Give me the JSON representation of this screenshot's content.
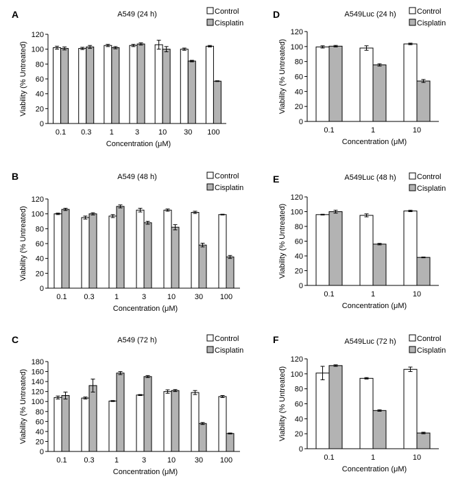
{
  "figure": {
    "legend_labels": {
      "control": "Control",
      "cisplatin": "Cisplatin"
    },
    "colors": {
      "control": "#ffffff",
      "cisplatin": "#b3b3b3",
      "stroke": "#000000"
    }
  },
  "chart_data": [
    {
      "panel": "A",
      "type": "bar",
      "title": "A549 (24 h)",
      "xlabel_prefix": "Concentration (",
      "xlabel_unit": "μM",
      "xlabel_suffix": ")",
      "ylabel": "Viability (% Untreated)",
      "categories": [
        "0.1",
        "0.3",
        "1",
        "3",
        "10",
        "30",
        "100"
      ],
      "ylim": [
        0,
        120
      ],
      "yticks": [
        0,
        20,
        40,
        60,
        80,
        100,
        120
      ],
      "legend": "top-right",
      "series": [
        {
          "name": "Control",
          "values": [
            102,
            101,
            105,
            105,
            106,
            100,
            104
          ],
          "errors": [
            2,
            1.5,
            1.5,
            1.5,
            6,
            1.5,
            1
          ]
        },
        {
          "name": "Cisplatin",
          "values": [
            101,
            103,
            102,
            107,
            100,
            84,
            57
          ],
          "errors": [
            2,
            2,
            1.5,
            1.5,
            3.5,
            1,
            0.5
          ]
        }
      ]
    },
    {
      "panel": "B",
      "type": "bar",
      "title": "A549 (48 h)",
      "xlabel_prefix": "Concentration (",
      "xlabel_unit": "μM",
      "xlabel_suffix": ")",
      "ylabel": "Viability (% Untreated)",
      "categories": [
        "0.1",
        "0.3",
        "1",
        "3",
        "10",
        "30",
        "100"
      ],
      "ylim": [
        0,
        120
      ],
      "yticks": [
        0,
        20,
        40,
        60,
        80,
        100,
        120
      ],
      "legend": "top-right",
      "series": [
        {
          "name": "Control",
          "values": [
            100,
            95,
            97,
            105,
            105,
            102,
            99
          ],
          "errors": [
            1,
            2,
            2,
            2.5,
            1.5,
            1.5,
            0.5
          ]
        },
        {
          "name": "Cisplatin",
          "values": [
            106,
            100,
            110,
            88,
            82,
            58,
            42
          ],
          "errors": [
            1.5,
            1.5,
            2,
            2,
            3.5,
            2.5,
            2
          ]
        }
      ]
    },
    {
      "panel": "C",
      "type": "bar",
      "title": "A549 (72 h)",
      "xlabel_prefix": "Concentration (",
      "xlabel_unit": "μM",
      "xlabel_suffix": ")",
      "ylabel": "Viability (% Untreated)",
      "categories": [
        "0.1",
        "0.3",
        "1",
        "3",
        "10",
        "30",
        "100"
      ],
      "ylim": [
        0,
        180
      ],
      "yticks": [
        0,
        20,
        40,
        60,
        80,
        100,
        120,
        140,
        160,
        180
      ],
      "legend": "top-right",
      "series": [
        {
          "name": "Control",
          "values": [
            108,
            107,
            101,
            113,
            120,
            118,
            110
          ],
          "errors": [
            3,
            2,
            1,
            1,
            3.5,
            4,
            2
          ]
        },
        {
          "name": "Cisplatin",
          "values": [
            112,
            132,
            157,
            150,
            122,
            56,
            36
          ],
          "errors": [
            7,
            13,
            3,
            2,
            2,
            2,
            1
          ]
        }
      ]
    },
    {
      "panel": "D",
      "type": "bar",
      "title": "A549Luc (24 h)",
      "xlabel_prefix": "Concentration (",
      "xlabel_unit": "μM",
      "xlabel_suffix": ")",
      "ylabel": "Viability (% Untreated)",
      "categories": [
        "0.1",
        "1",
        "10"
      ],
      "ylim": [
        0,
        120
      ],
      "yticks": [
        0,
        20,
        40,
        60,
        80,
        100,
        120
      ],
      "legend": "top-right",
      "series": [
        {
          "name": "Control",
          "values": [
            99.5,
            98,
            103.5
          ],
          "errors": [
            1.5,
            3,
            1
          ]
        },
        {
          "name": "Cisplatin",
          "values": [
            100.5,
            75.5,
            54
          ],
          "errors": [
            1,
            1.5,
            2
          ]
        }
      ]
    },
    {
      "panel": "E",
      "type": "bar",
      "title": "A549Luc (48 h)",
      "xlabel_prefix": "Concentration (",
      "xlabel_unit": "μM",
      "xlabel_suffix": ")",
      "ylabel": "Viability (% Untreated)",
      "categories": [
        "0.1",
        "1",
        "10"
      ],
      "ylim": [
        0,
        120
      ],
      "yticks": [
        0,
        20,
        40,
        60,
        80,
        100,
        120
      ],
      "legend": "top-right",
      "series": [
        {
          "name": "Control",
          "values": [
            96,
            95,
            101
          ],
          "errors": [
            0.5,
            2,
            1
          ]
        },
        {
          "name": "Cisplatin",
          "values": [
            100,
            56,
            38
          ],
          "errors": [
            2,
            1,
            0.5
          ]
        }
      ]
    },
    {
      "panel": "F",
      "type": "bar",
      "title": "A549Luc (72 h)",
      "xlabel_prefix": "Concentration (",
      "xlabel_unit": "μM",
      "xlabel_suffix": ")",
      "ylabel": "Viability (% Untreated)",
      "categories": [
        "0.1",
        "1",
        "10"
      ],
      "ylim": [
        0,
        120
      ],
      "yticks": [
        0,
        20,
        40,
        60,
        80,
        100,
        120
      ],
      "legend": "top-right",
      "series": [
        {
          "name": "Control",
          "values": [
            101,
            94,
            106
          ],
          "errors": [
            9,
            1,
            3
          ]
        },
        {
          "name": "Cisplatin",
          "values": [
            111,
            51,
            21
          ],
          "errors": [
            1,
            1,
            1
          ]
        }
      ]
    }
  ]
}
